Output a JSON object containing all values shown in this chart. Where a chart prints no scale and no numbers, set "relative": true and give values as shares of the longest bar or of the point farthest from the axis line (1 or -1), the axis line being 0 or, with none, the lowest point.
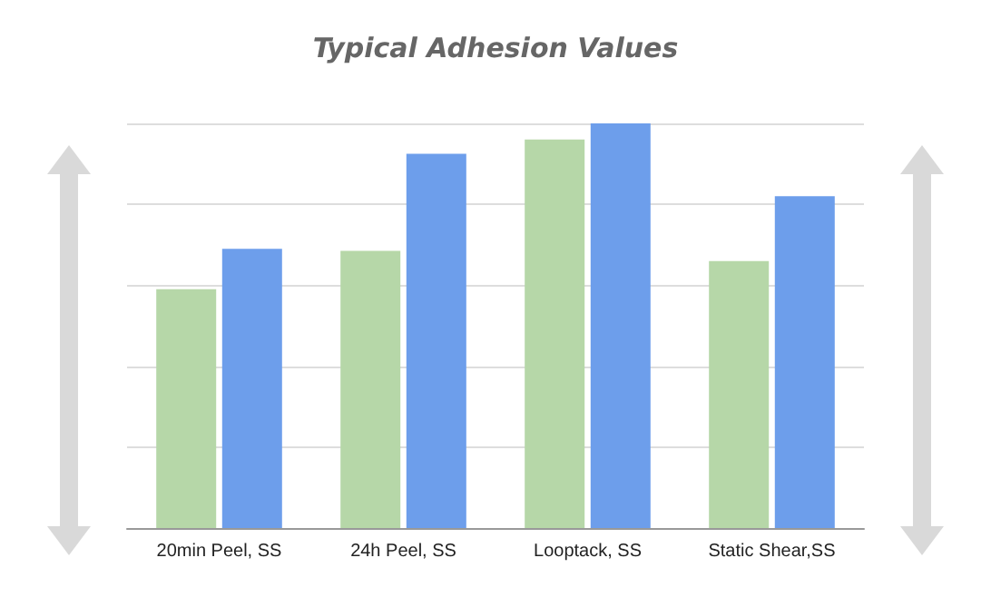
{
  "chart_data": {
    "type": "bar",
    "title": "Typical Adhesion Values",
    "relative": true,
    "grid": "y",
    "categories": [
      "20min Peel, SS",
      "24h Peel, SS",
      "Looptack, SS",
      "Static Shear,SS"
    ],
    "series": [
      {
        "color": "#b6d7a8",
        "values": [
          0.59,
          0.685,
          0.96,
          0.66
        ]
      },
      {
        "color": "#6d9eeb",
        "values": [
          0.69,
          0.925,
          1,
          0.82
        ]
      }
    ]
  }
}
